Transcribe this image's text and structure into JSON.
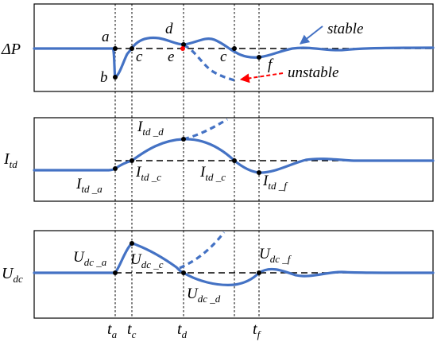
{
  "panels": [
    {
      "id": "dp",
      "ylabel": "ΔP",
      "points": [
        {
          "key": "a",
          "text": "a"
        },
        {
          "key": "b",
          "text": "b"
        },
        {
          "key": "c1",
          "text": "c"
        },
        {
          "key": "d",
          "text": "d"
        },
        {
          "key": "e",
          "text": "e"
        },
        {
          "key": "c2",
          "text": "c"
        },
        {
          "key": "f",
          "text": "f"
        }
      ],
      "annotations": {
        "stable": "stable",
        "unstable": "unstable"
      }
    },
    {
      "id": "itd",
      "ylabel_base": "I",
      "ylabel_sub": "td",
      "points": [
        {
          "key": "a",
          "base": "I",
          "sub": "td _a"
        },
        {
          "key": "c1",
          "base": "I",
          "sub": "td _c"
        },
        {
          "key": "d",
          "base": "I",
          "sub": "td _d"
        },
        {
          "key": "c2",
          "base": "I",
          "sub": "td _c"
        },
        {
          "key": "f",
          "base": "I",
          "sub": "td _f"
        }
      ]
    },
    {
      "id": "udc",
      "ylabel_base": "U",
      "ylabel_sub": "dc",
      "points": [
        {
          "key": "a",
          "base": "U",
          "sub": "dc _a"
        },
        {
          "key": "c",
          "base": "U",
          "sub": "dc _c"
        },
        {
          "key": "d",
          "base": "U",
          "sub": "dc _d"
        },
        {
          "key": "f",
          "base": "U",
          "sub": "dc _f"
        }
      ]
    }
  ],
  "time_axis": [
    {
      "base": "t",
      "sub": "a"
    },
    {
      "base": "t",
      "sub": "c"
    },
    {
      "base": "t",
      "sub": "d"
    },
    {
      "base": "t",
      "sub": "f"
    }
  ],
  "colors": {
    "curve": "#4472c4",
    "marker_unstable": "#ff0000",
    "arrow_stable": "#4472c4",
    "arrow_unstable": "#ff0000"
  }
}
